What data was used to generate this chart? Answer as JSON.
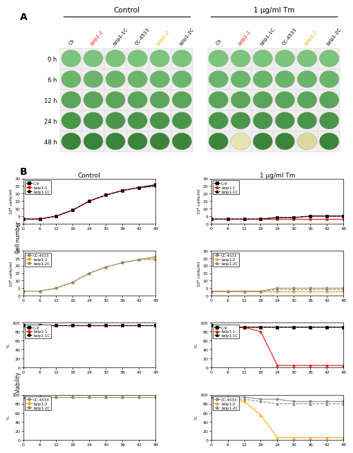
{
  "panel_A": {
    "control_title": "Control",
    "tm_title": "1 μg/ml Tm",
    "col_labels": [
      "C9",
      "bzip1-1",
      "bzip1-1C",
      "CC-4533",
      "bzip1-2",
      "bzip1-2C"
    ],
    "col_colors": [
      "black",
      "red",
      "black",
      "black",
      "orange",
      "black"
    ],
    "col_italic": [
      false,
      true,
      false,
      false,
      true,
      false
    ],
    "row_labels": [
      "0 h",
      "6 h",
      "12 h",
      "24 h",
      "48 h"
    ],
    "control_colors": [
      [
        "#7bc47b",
        "#7bc47b",
        "#7bc47b",
        "#7bc47b",
        "#7bc47b",
        "#7bc47b"
      ],
      [
        "#6ab56a",
        "#6ab56a",
        "#6ab56a",
        "#6ab56a",
        "#6ab56a",
        "#6ab56a"
      ],
      [
        "#5aa55a",
        "#5aa55a",
        "#5aa55a",
        "#5aa55a",
        "#5aa55a",
        "#5aa55a"
      ],
      [
        "#4a954a",
        "#4a954a",
        "#4a954a",
        "#4a954a",
        "#4a954a",
        "#4a954a"
      ],
      [
        "#3a853a",
        "#3a853a",
        "#3a853a",
        "#3a853a",
        "#3a853a",
        "#3a853a"
      ]
    ],
    "tm_colors": [
      [
        "#7bc47b",
        "#7bc47b",
        "#7bc47b",
        "#7bc47b",
        "#7bc47b",
        "#7bc47b"
      ],
      [
        "#6ab56a",
        "#6ab56a",
        "#6ab56a",
        "#6ab56a",
        "#6ab56a",
        "#6ab56a"
      ],
      [
        "#5aa55a",
        "#5aa55a",
        "#5aa55a",
        "#5aa55a",
        "#5aa55a",
        "#5aa55a"
      ],
      [
        "#4a954a",
        "#4a954a",
        "#4a954a",
        "#4a954a",
        "#4a954a",
        "#4a954a"
      ],
      [
        "#3a853a",
        "#e8e4b0",
        "#3a853a",
        "#3a853a",
        "#ddd8a0",
        "#3a853a"
      ]
    ]
  },
  "panel_B": {
    "control_title": "Control",
    "tm_title": "1 μg/ml Tm",
    "xvals": [
      0,
      6,
      12,
      18,
      24,
      30,
      36,
      42,
      48
    ],
    "ctrl_group1": {
      "ylabel": "10⁶ cells/ml",
      "ylim": [
        0,
        30
      ],
      "yticks": [
        0,
        5,
        10,
        15,
        20,
        25,
        30
      ],
      "legend": [
        "C-9",
        "bzip1-1",
        "bzip1-1C"
      ],
      "legend_colors": [
        "black",
        "red",
        "black"
      ],
      "legend_styles": [
        "-",
        "-",
        "--"
      ],
      "legend_markers": [
        "s",
        "o",
        "o"
      ],
      "series": [
        [
          3,
          3,
          5,
          9,
          15,
          19,
          22,
          24,
          26
        ],
        [
          3,
          3,
          5,
          9,
          15,
          19,
          22,
          24,
          25
        ],
        [
          3,
          3,
          5,
          9,
          15,
          19,
          22,
          24,
          25
        ]
      ]
    },
    "ctrl_group2": {
      "ylabel": "10⁶ cells/ml",
      "ylim": [
        0,
        30
      ],
      "yticks": [
        0,
        5,
        10,
        15,
        20,
        25,
        30
      ],
      "legend": [
        "CC-4533",
        "bzip1-2",
        "bzip1-2C"
      ],
      "legend_colors": [
        "#888888",
        "orange",
        "#888888"
      ],
      "legend_styles": [
        "-",
        "-",
        "--"
      ],
      "legend_markers": [
        "o",
        "o",
        "o"
      ],
      "series": [
        [
          3,
          3,
          5,
          9,
          15,
          19,
          22,
          24,
          26
        ],
        [
          3,
          3,
          5,
          9,
          15,
          19,
          22,
          24,
          25
        ],
        [
          3,
          3,
          5,
          9,
          15,
          19,
          22,
          24,
          24
        ]
      ]
    },
    "tm_group1": {
      "ylabel": "10⁶ cells/ml",
      "ylim": [
        0,
        30
      ],
      "yticks": [
        0,
        5,
        10,
        15,
        20,
        25,
        30
      ],
      "legend": [
        "C-9",
        "bzip1-1",
        "bzip1-1C"
      ],
      "legend_colors": [
        "black",
        "red",
        "black"
      ],
      "legend_styles": [
        "-",
        "-",
        "--"
      ],
      "legend_markers": [
        "s",
        "^",
        "^"
      ],
      "series": [
        [
          3,
          3,
          3,
          3,
          4,
          4,
          5,
          5,
          5
        ],
        [
          3,
          3,
          3,
          3,
          3,
          3,
          3,
          3,
          3
        ],
        [
          3,
          3,
          3,
          3,
          4,
          4,
          5,
          5,
          5
        ]
      ]
    },
    "tm_group2": {
      "ylabel": "10⁶ cells/ml",
      "ylim": [
        0,
        30
      ],
      "yticks": [
        0,
        5,
        10,
        15,
        20,
        25,
        30
      ],
      "legend": [
        "CC-4533",
        "bzip1-2",
        "bzip1-2C"
      ],
      "legend_colors": [
        "#888888",
        "orange",
        "#888888"
      ],
      "legend_styles": [
        "-",
        "-",
        "--"
      ],
      "legend_markers": [
        "o",
        "^",
        "^"
      ],
      "series": [
        [
          3,
          3,
          3,
          3,
          5,
          5,
          5,
          5,
          5
        ],
        [
          3,
          3,
          3,
          3,
          3,
          3,
          3,
          3,
          3
        ],
        [
          3,
          3,
          3,
          3,
          4,
          4,
          4,
          4,
          4
        ]
      ]
    },
    "ctrl_viab1": {
      "ylabel": "%",
      "ylim": [
        0,
        100
      ],
      "yticks": [
        0,
        20,
        40,
        60,
        80,
        100
      ],
      "legend": [
        "C-9",
        "bzip1-1",
        "bzip1-1C"
      ],
      "legend_colors": [
        "black",
        "red",
        "black"
      ],
      "legend_styles": [
        "-",
        "-",
        "--"
      ],
      "legend_markers": [
        "s",
        "o",
        "o"
      ],
      "series": [
        [
          95,
          95,
          95,
          95,
          95,
          95,
          95,
          95,
          95
        ],
        [
          95,
          95,
          95,
          95,
          95,
          95,
          95,
          95,
          95
        ],
        [
          95,
          95,
          95,
          95,
          95,
          95,
          95,
          95,
          95
        ]
      ]
    },
    "ctrl_viab2": {
      "ylabel": "%",
      "ylim": [
        0,
        100
      ],
      "yticks": [
        0,
        20,
        40,
        60,
        80,
        100
      ],
      "legend": [
        "CC-4533",
        "bzip1-2",
        "bzip1-2C"
      ],
      "legend_colors": [
        "#888888",
        "orange",
        "#888888"
      ],
      "legend_styles": [
        "-",
        "-",
        "--"
      ],
      "legend_markers": [
        "o",
        "o",
        "o"
      ],
      "series": [
        [
          95,
          95,
          95,
          95,
          95,
          95,
          95,
          95,
          95
        ],
        [
          95,
          95,
          95,
          95,
          95,
          95,
          95,
          95,
          95
        ],
        [
          95,
          95,
          95,
          95,
          95,
          95,
          95,
          95,
          95
        ]
      ]
    },
    "tm_viab1": {
      "ylabel": "%",
      "ylim": [
        0,
        100
      ],
      "yticks": [
        0,
        20,
        40,
        60,
        80,
        100
      ],
      "legend": [
        "C-9",
        "bzip1-1",
        "bzip1-1C"
      ],
      "legend_colors": [
        "black",
        "red",
        "black"
      ],
      "legend_styles": [
        "-",
        "-",
        "--"
      ],
      "legend_markers": [
        "s",
        "^",
        "^"
      ],
      "series": [
        [
          95,
          90,
          90,
          90,
          90,
          90,
          90,
          90,
          90
        ],
        [
          95,
          90,
          90,
          80,
          5,
          5,
          5,
          5,
          5
        ],
        [
          95,
          90,
          90,
          90,
          90,
          90,
          90,
          90,
          90
        ]
      ]
    },
    "tm_viab2": {
      "ylabel": "%",
      "ylim": [
        0,
        100
      ],
      "yticks": [
        0,
        20,
        40,
        60,
        80,
        100
      ],
      "legend": [
        "CC-4533",
        "bzip1-2",
        "bzip1-2C"
      ],
      "legend_colors": [
        "#888888",
        "orange",
        "#888888"
      ],
      "legend_styles": [
        "-",
        "-",
        "--"
      ],
      "legend_markers": [
        "o",
        "^",
        "^"
      ],
      "series": [
        [
          95,
          95,
          95,
          90,
          90,
          85,
          85,
          85,
          85
        ],
        [
          95,
          90,
          85,
          55,
          5,
          5,
          5,
          5,
          5
        ],
        [
          95,
          90,
          90,
          85,
          80,
          80,
          80,
          80,
          80
        ]
      ]
    }
  }
}
